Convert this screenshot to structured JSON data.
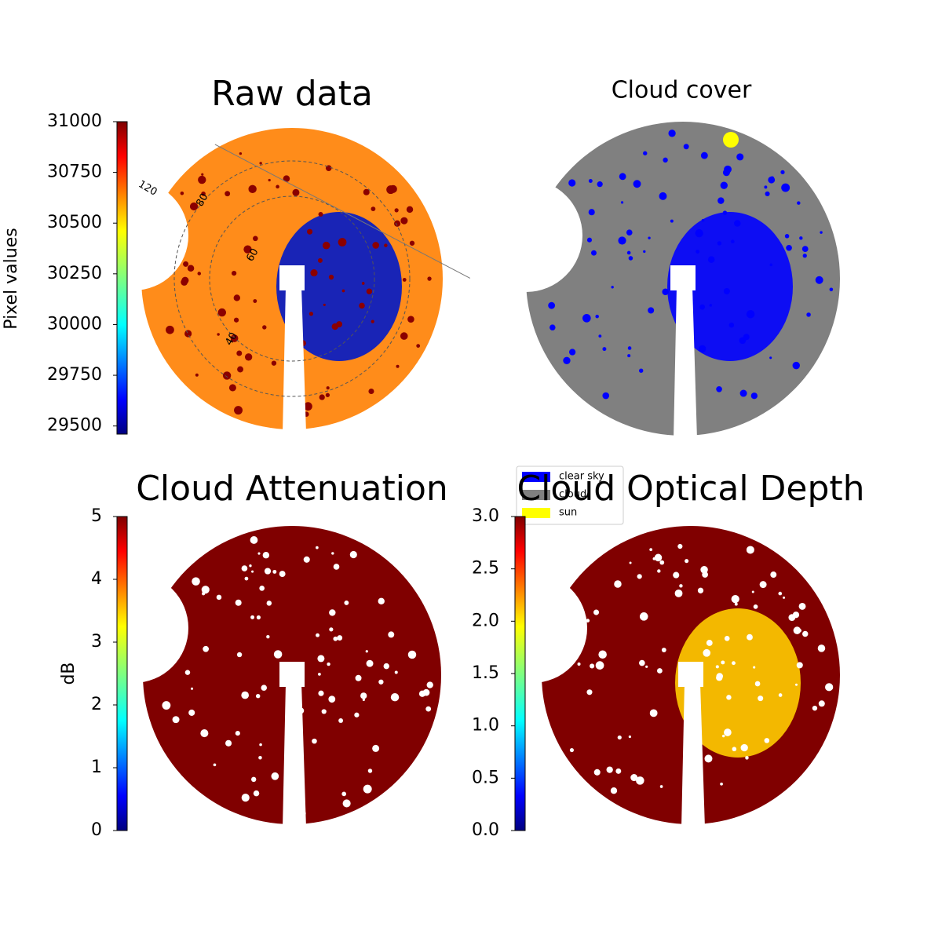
{
  "chart_data": [
    {
      "type": "image",
      "title": "Raw data",
      "colormap": "jet",
      "ylabel": "Pixel values",
      "ylim": [
        29460,
        31000
      ],
      "yticks": [
        29500,
        29750,
        30000,
        30250,
        30500,
        30750,
        31000
      ],
      "annotations": [
        "120",
        "80",
        "60",
        "40"
      ]
    },
    {
      "type": "image",
      "title": "Cloud cover",
      "series": [
        {
          "name": "clear sky",
          "color": "#0000ff"
        },
        {
          "name": "cloud",
          "color": "#808080"
        },
        {
          "name": "sun",
          "color": "#ffff00"
        }
      ],
      "legend": "lower left"
    },
    {
      "type": "image",
      "title": "Cloud Attenuation",
      "colormap": "jet",
      "ylabel": "dB",
      "ylim": [
        0,
        5
      ],
      "yticks": [
        0,
        1,
        2,
        3,
        4,
        5
      ]
    },
    {
      "type": "image",
      "title": "Cloud Optical Depth",
      "colormap": "jet",
      "ylim": [
        0,
        3
      ],
      "yticks": [
        {
          "value": 0,
          "label": "0.0"
        },
        {
          "value": 0.5,
          "label": "0.5"
        },
        {
          "value": 1,
          "label": "1.0"
        },
        {
          "value": 1.5,
          "label": "1.5"
        },
        {
          "value": 2,
          "label": "2.0"
        },
        {
          "value": 2.5,
          "label": "2.5"
        },
        {
          "value": 3,
          "label": "3.0"
        }
      ]
    }
  ]
}
